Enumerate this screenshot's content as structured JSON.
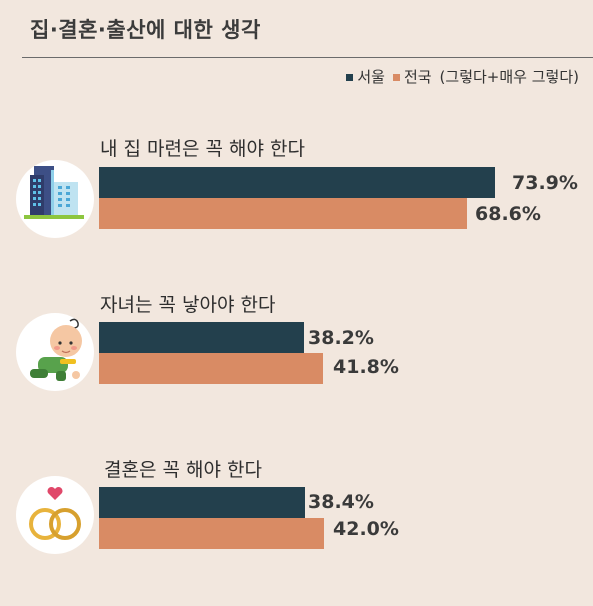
{
  "title": "집·결혼·출산에 대한 생각",
  "legend": {
    "seoul_label": "서울",
    "national_label": "전국",
    "note": "(그렇다+매우 그렇다)"
  },
  "colors": {
    "seoul": "#23404d",
    "national": "#d98b64"
  },
  "chart_data": {
    "type": "bar",
    "orientation": "horizontal",
    "title": "집·결혼·출산에 대한 생각",
    "unit": "%",
    "xlim": [
      0,
      100
    ],
    "categories": [
      "내 집 마련은 꼭 해야 한다",
      "자녀는 꼭 낳아야 한다",
      "결혼은 꼭 해야 한다"
    ],
    "series": [
      {
        "name": "서울",
        "values": [
          73.9,
          38.2,
          38.4
        ],
        "labels": [
          "73.9%",
          "38.2%",
          "38.4%"
        ]
      },
      {
        "name": "전국",
        "values": [
          68.6,
          41.8,
          42.0
        ],
        "labels": [
          "68.6%",
          "41.8%",
          "42.0%"
        ]
      }
    ],
    "icons": [
      "buildings-icon",
      "crawling-baby-icon",
      "wedding-rings-icon"
    ]
  }
}
